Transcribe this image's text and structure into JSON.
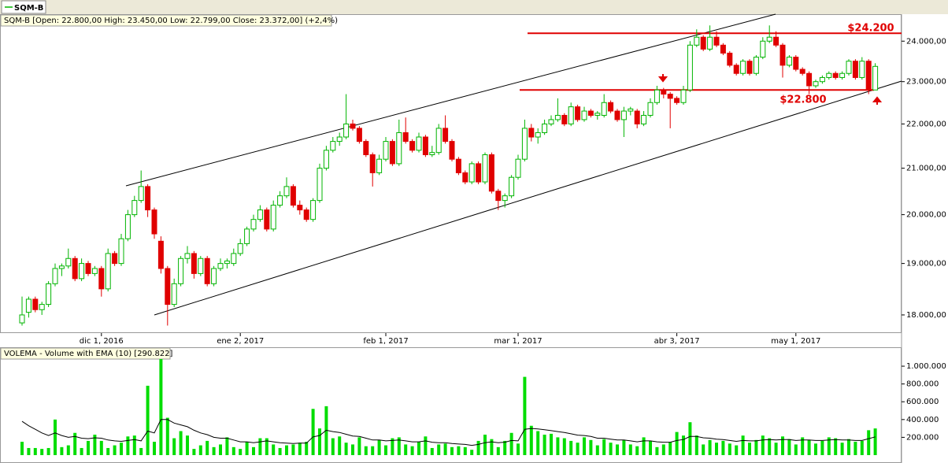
{
  "tab": "SQM-B",
  "chart_data": [
    {
      "type": "candlestick",
      "title": "SQM-B [Open: 22.800,00  High: 23.450,00  Low: 22.799,00  Close: 23.372,00] (+2,4%)",
      "categories": [
        null,
        null,
        null,
        null,
        null,
        null,
        null,
        null,
        null,
        null,
        null,
        null,
        "dic 1, 2016",
        null,
        null,
        null,
        null,
        null,
        null,
        null,
        null,
        null,
        null,
        null,
        null,
        null,
        null,
        null,
        null,
        null,
        null,
        null,
        null,
        "ene 2, 2017",
        null,
        null,
        null,
        null,
        null,
        null,
        null,
        null,
        null,
        null,
        null,
        null,
        null,
        null,
        null,
        null,
        null,
        null,
        null,
        null,
        null,
        "feb 1, 2017",
        null,
        null,
        null,
        null,
        null,
        null,
        null,
        null,
        null,
        null,
        null,
        null,
        null,
        null,
        null,
        null,
        null,
        null,
        null,
        "mar 1, 2017",
        null,
        null,
        null,
        null,
        null,
        null,
        null,
        null,
        null,
        null,
        null,
        null,
        null,
        null,
        null,
        null,
        null,
        null,
        null,
        null,
        null,
        null,
        null,
        "abr 3, 2017",
        null,
        null,
        null,
        null,
        null,
        null,
        null,
        null,
        null,
        null,
        null,
        null,
        null,
        null,
        null,
        null,
        null,
        "may 1, 2017",
        null,
        null,
        null,
        null,
        null,
        null,
        null,
        null,
        null,
        null,
        null,
        null
      ],
      "ohlc": [
        [
          17850,
          18350,
          17800,
          18000
        ],
        [
          18050,
          18350,
          17950,
          18300
        ],
        [
          18300,
          18350,
          18050,
          18100
        ],
        [
          18100,
          18250,
          18000,
          18200
        ],
        [
          18200,
          18650,
          18150,
          18600
        ],
        [
          18600,
          19000,
          18550,
          18900
        ],
        [
          18900,
          19000,
          18750,
          18950
        ],
        [
          18950,
          19300,
          18900,
          19100
        ],
        [
          19100,
          19150,
          18650,
          18700
        ],
        [
          18700,
          19100,
          18650,
          19000
        ],
        [
          19000,
          19050,
          18750,
          18800
        ],
        [
          18800,
          18950,
          18750,
          18900
        ],
        [
          18900,
          18950,
          18350,
          18500
        ],
        [
          18500,
          19300,
          18450,
          19200
        ],
        [
          19200,
          19250,
          18950,
          19000
        ],
        [
          19000,
          19600,
          18950,
          19500
        ],
        [
          19500,
          20100,
          19450,
          20000
        ],
        [
          20000,
          20400,
          19950,
          20300
        ],
        [
          20300,
          20950,
          20250,
          20600
        ],
        [
          20600,
          20650,
          19950,
          20100
        ],
        [
          20100,
          20150,
          19500,
          19600
        ],
        [
          19450,
          19550,
          18800,
          18900
        ],
        [
          18900,
          18950,
          17800,
          18200
        ],
        [
          18200,
          18700,
          18150,
          18600
        ],
        [
          18600,
          19150,
          18550,
          19100
        ],
        [
          19100,
          19350,
          19000,
          19200
        ],
        [
          19200,
          19250,
          18700,
          18800
        ],
        [
          18800,
          19150,
          18750,
          19100
        ],
        [
          19100,
          19150,
          18550,
          18600
        ],
        [
          18600,
          18950,
          18550,
          18900
        ],
        [
          18900,
          19100,
          18850,
          19000
        ],
        [
          19000,
          19100,
          18900,
          19050
        ],
        [
          19000,
          19300,
          18950,
          19200
        ],
        [
          19200,
          19500,
          19150,
          19400
        ],
        [
          19400,
          19750,
          19350,
          19700
        ],
        [
          19700,
          20000,
          19650,
          19900
        ],
        [
          19900,
          20200,
          19850,
          20100
        ],
        [
          20100,
          20150,
          19650,
          19700
        ],
        [
          19700,
          20300,
          19650,
          20200
        ],
        [
          20200,
          20500,
          20150,
          20400
        ],
        [
          20400,
          20800,
          20350,
          20600
        ],
        [
          20600,
          20650,
          20150,
          20200
        ],
        [
          20200,
          20300,
          20000,
          20100
        ],
        [
          20100,
          20150,
          19850,
          19900
        ],
        [
          19900,
          20350,
          19850,
          20300
        ],
        [
          20300,
          21100,
          20250,
          21000
        ],
        [
          21000,
          21500,
          20950,
          21400
        ],
        [
          21400,
          21700,
          21350,
          21600
        ],
        [
          21600,
          21800,
          21500,
          21700
        ],
        [
          21700,
          22700,
          21650,
          22000
        ],
        [
          22000,
          22100,
          21850,
          21900
        ],
        [
          21900,
          21950,
          21550,
          21600
        ],
        [
          21600,
          21650,
          21250,
          21300
        ],
        [
          21300,
          21350,
          20600,
          20900
        ],
        [
          20900,
          21300,
          20850,
          21200
        ],
        [
          21200,
          21700,
          21150,
          21600
        ],
        [
          21600,
          21650,
          21050,
          21100
        ],
        [
          21100,
          22100,
          21050,
          21800
        ],
        [
          21800,
          22150,
          21550,
          21600
        ],
        [
          21600,
          21650,
          21350,
          21400
        ],
        [
          21400,
          21800,
          21350,
          21700
        ],
        [
          21700,
          21750,
          21250,
          21300
        ],
        [
          21300,
          21500,
          21250,
          21350
        ],
        [
          21350,
          22000,
          21300,
          21900
        ],
        [
          21900,
          22200,
          21550,
          21600
        ],
        [
          21600,
          21650,
          21150,
          21200
        ],
        [
          21200,
          21250,
          20850,
          20900
        ],
        [
          20900,
          20950,
          20650,
          20700
        ],
        [
          20700,
          21150,
          20650,
          21100
        ],
        [
          21100,
          21150,
          20650,
          20700
        ],
        [
          20700,
          21350,
          20650,
          21300
        ],
        [
          21300,
          21350,
          20450,
          20500
        ],
        [
          20500,
          20550,
          20100,
          20300
        ],
        [
          20300,
          20450,
          20150,
          20400
        ],
        [
          20400,
          20850,
          20350,
          20800
        ],
        [
          20800,
          21300,
          20750,
          21200
        ],
        [
          21200,
          22100,
          21150,
          21900
        ],
        [
          21900,
          22000,
          21600,
          21700
        ],
        [
          21700,
          21900,
          21550,
          21800
        ],
        [
          21800,
          22100,
          21750,
          22000
        ],
        [
          22000,
          22200,
          21950,
          22100
        ],
        [
          22100,
          22600,
          22050,
          22200
        ],
        [
          22200,
          22250,
          21950,
          22000
        ],
        [
          22000,
          22500,
          21950,
          22400
        ],
        [
          22400,
          22450,
          22050,
          22100
        ],
        [
          22100,
          22400,
          22050,
          22300
        ],
        [
          22300,
          22350,
          22150,
          22200
        ],
        [
          22200,
          22300,
          22100,
          22250
        ],
        [
          22200,
          22700,
          22150,
          22500
        ],
        [
          22500,
          22550,
          22250,
          22300
        ],
        [
          22300,
          22350,
          22050,
          22100
        ],
        [
          22100,
          22400,
          21700,
          22300
        ],
        [
          22300,
          22400,
          22200,
          22350
        ],
        [
          22300,
          22350,
          21900,
          22000
        ],
        [
          22000,
          22300,
          21950,
          22200
        ],
        [
          22200,
          22600,
          22150,
          22500
        ],
        [
          22500,
          22900,
          22450,
          22800
        ],
        [
          22800,
          22850,
          22600,
          22700
        ],
        [
          22700,
          22750,
          21900,
          22600
        ],
        [
          22600,
          22650,
          22450,
          22500
        ],
        [
          22500,
          22900,
          22450,
          22800
        ],
        [
          22800,
          24000,
          22750,
          23900
        ],
        [
          23900,
          24300,
          23850,
          24100
        ],
        [
          24100,
          24150,
          23750,
          23800
        ],
        [
          23800,
          24400,
          23750,
          24100
        ],
        [
          24100,
          24250,
          23850,
          23900
        ],
        [
          23900,
          23950,
          23650,
          23700
        ],
        [
          23700,
          23750,
          23350,
          23400
        ],
        [
          23400,
          23450,
          23150,
          23200
        ],
        [
          23200,
          23550,
          23150,
          23500
        ],
        [
          23500,
          23550,
          23150,
          23200
        ],
        [
          23200,
          23650,
          23150,
          23600
        ],
        [
          23600,
          24100,
          23550,
          24000
        ],
        [
          24000,
          24400,
          23950,
          24100
        ],
        [
          24100,
          24250,
          23850,
          23900
        ],
        [
          23900,
          23950,
          23100,
          23400
        ],
        [
          23400,
          23650,
          23350,
          23600
        ],
        [
          23600,
          23650,
          23250,
          23300
        ],
        [
          23300,
          23350,
          23150,
          23200
        ],
        [
          23200,
          23250,
          22700,
          22900
        ],
        [
          22900,
          23050,
          22850,
          23000
        ],
        [
          23000,
          23150,
          22950,
          23100
        ],
        [
          23100,
          23250,
          23050,
          23200
        ],
        [
          23200,
          23250,
          23050,
          23100
        ],
        [
          23100,
          23250,
          23050,
          23200
        ],
        [
          23200,
          23550,
          23150,
          23500
        ],
        [
          23500,
          23550,
          23050,
          23100
        ],
        [
          23100,
          23600,
          23050,
          23500
        ],
        [
          23500,
          23550,
          22700,
          22800
        ],
        [
          22800,
          23450,
          22799,
          23372
        ]
      ],
      "up_color": "#00b400",
      "down_color": "#e00000",
      "log_scale": true,
      "ylim": [
        17660,
        24690
      ],
      "yticks": [
        {
          "value": 18000,
          "label": "18.000,00"
        },
        {
          "value": 19000,
          "label": "19.000,00"
        },
        {
          "value": 20000,
          "label": "20.000,00"
        },
        {
          "value": 21000,
          "label": "21.000,00"
        },
        {
          "value": 22000,
          "label": "22.000,00"
        },
        {
          "value": 23000,
          "label": "23.000,00"
        },
        {
          "value": 24000,
          "label": "24.000,00"
        }
      ],
      "levels": [
        {
          "value": 24200,
          "label": "$24.200",
          "color": "#e00000"
        },
        {
          "value": 22800,
          "label": "$22.800",
          "color": "#e00000"
        }
      ]
    },
    {
      "type": "volume",
      "title": "VOLEMA - Volume with EMA (10) [290.822]",
      "volume": {
        "color": "#00dd00",
        "values": [
          150000,
          80000,
          80000,
          70000,
          80000,
          400000,
          90000,
          110000,
          250000,
          80000,
          160000,
          230000,
          160000,
          80000,
          110000,
          140000,
          210000,
          220000,
          80000,
          780000,
          150000,
          1080000,
          420000,
          190000,
          270000,
          220000,
          70000,
          110000,
          160000,
          90000,
          120000,
          200000,
          90000,
          70000,
          150000,
          90000,
          190000,
          190000,
          120000,
          80000,
          110000,
          120000,
          140000,
          150000,
          520000,
          300000,
          550000,
          190000,
          210000,
          140000,
          120000,
          200000,
          100000,
          100000,
          170000,
          110000,
          190000,
          200000,
          120000,
          100000,
          150000,
          210000,
          80000,
          120000,
          130000,
          90000,
          100000,
          90000,
          60000,
          160000,
          230000,
          180000,
          90000,
          160000,
          250000,
          130000,
          880000,
          330000,
          270000,
          230000,
          240000,
          200000,
          190000,
          160000,
          140000,
          200000,
          170000,
          110000,
          180000,
          140000,
          120000,
          170000,
          120000,
          100000,
          200000,
          160000,
          90000,
          120000,
          150000,
          260000,
          220000,
          370000,
          220000,
          120000,
          170000,
          140000,
          160000,
          130000,
          110000,
          220000,
          140000,
          170000,
          220000,
          190000,
          140000,
          210000,
          180000,
          120000,
          200000,
          170000,
          130000,
          160000,
          200000,
          190000,
          140000,
          180000,
          150000,
          160000,
          280000,
          300000
        ]
      },
      "ema": {
        "color": "#000000",
        "values": [
          380000,
          330000,
          290000,
          250000,
          220000,
          250000,
          220000,
          200000,
          210000,
          190000,
          185000,
          195000,
          190000,
          170000,
          160000,
          155000,
          165000,
          175000,
          160000,
          270000,
          250000,
          400000,
          400000,
          360000,
          340000,
          320000,
          280000,
          250000,
          230000,
          200000,
          190000,
          190000,
          170000,
          150000,
          150000,
          140000,
          150000,
          160000,
          150000,
          140000,
          135000,
          130000,
          135000,
          135000,
          205000,
          220000,
          280000,
          265000,
          255000,
          235000,
          215000,
          210000,
          190000,
          170000,
          170000,
          160000,
          165000,
          170000,
          160000,
          150000,
          150000,
          160000,
          145000,
          140000,
          140000,
          130000,
          125000,
          120000,
          110000,
          120000,
          140000,
          150000,
          140000,
          145000,
          165000,
          160000,
          290000,
          300000,
          295000,
          285000,
          275000,
          265000,
          255000,
          240000,
          225000,
          220000,
          210000,
          190000,
          190000,
          180000,
          170000,
          170000,
          160000,
          150000,
          160000,
          160000,
          150000,
          145000,
          145000,
          165000,
          175000,
          210000,
          210000,
          195000,
          190000,
          180000,
          175000,
          165000,
          155000,
          165000,
          160000,
          160000,
          170000,
          175000,
          170000,
          175000,
          175000,
          165000,
          170000,
          170000,
          165000,
          165000,
          170000,
          175000,
          170000,
          170000,
          165000,
          165000,
          185000,
          205000
        ]
      },
      "ylim": [
        0,
        1204000
      ],
      "yticks": [
        {
          "value": 200000,
          "label": "200.000"
        },
        {
          "value": 400000,
          "label": "400.000"
        },
        {
          "value": 600000,
          "label": "600.000"
        },
        {
          "value": 800000,
          "label": "800.000"
        },
        {
          "value": 1000000,
          "label": "1.000.000"
        }
      ]
    }
  ]
}
